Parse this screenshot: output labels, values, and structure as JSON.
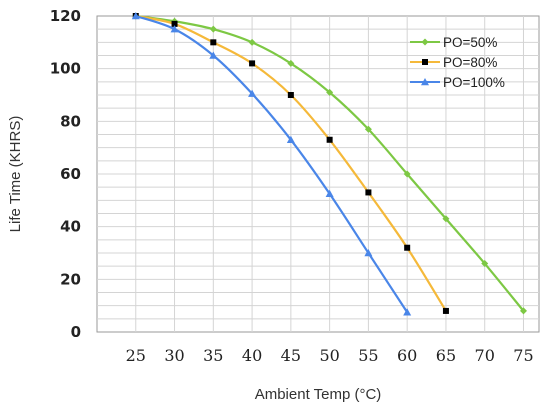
{
  "chart_data": {
    "type": "line",
    "title": "",
    "xlabel": "Ambient Temp (°C)",
    "ylabel": "Life Time (KHRS)",
    "xlim": [
      20,
      77
    ],
    "ylim": [
      0,
      120
    ],
    "xticks": [
      "25",
      "30",
      "35",
      "40",
      "45",
      "50",
      "55",
      "60",
      "65",
      "70",
      "75"
    ],
    "yticks": [
      "0",
      "20",
      "40",
      "60",
      "80",
      "100",
      "120"
    ],
    "grid": true,
    "legend_position": "top-right",
    "series": [
      {
        "name": "PO=50%",
        "color": "#7dc844",
        "marker": "diamond",
        "x": [
          25,
          30,
          35,
          40,
          45,
          50,
          55,
          60,
          65,
          70,
          75
        ],
        "y": [
          120,
          118,
          115,
          110,
          102,
          91,
          77,
          60,
          43,
          26,
          8
        ]
      },
      {
        "name": "PO=80%",
        "color": "#f5b93a",
        "marker": "square",
        "x": [
          25,
          30,
          35,
          40,
          45,
          50,
          55,
          60,
          65
        ],
        "y": [
          120,
          117,
          110,
          102,
          90,
          73,
          53,
          32,
          8
        ]
      },
      {
        "name": "PO=100%",
        "color": "#4a86e8",
        "marker": "triangle",
        "x": [
          25,
          30,
          35,
          40,
          45,
          50,
          55,
          60
        ],
        "y": [
          120,
          115,
          105,
          90.5,
          73,
          52.5,
          30,
          7.5
        ]
      }
    ]
  }
}
